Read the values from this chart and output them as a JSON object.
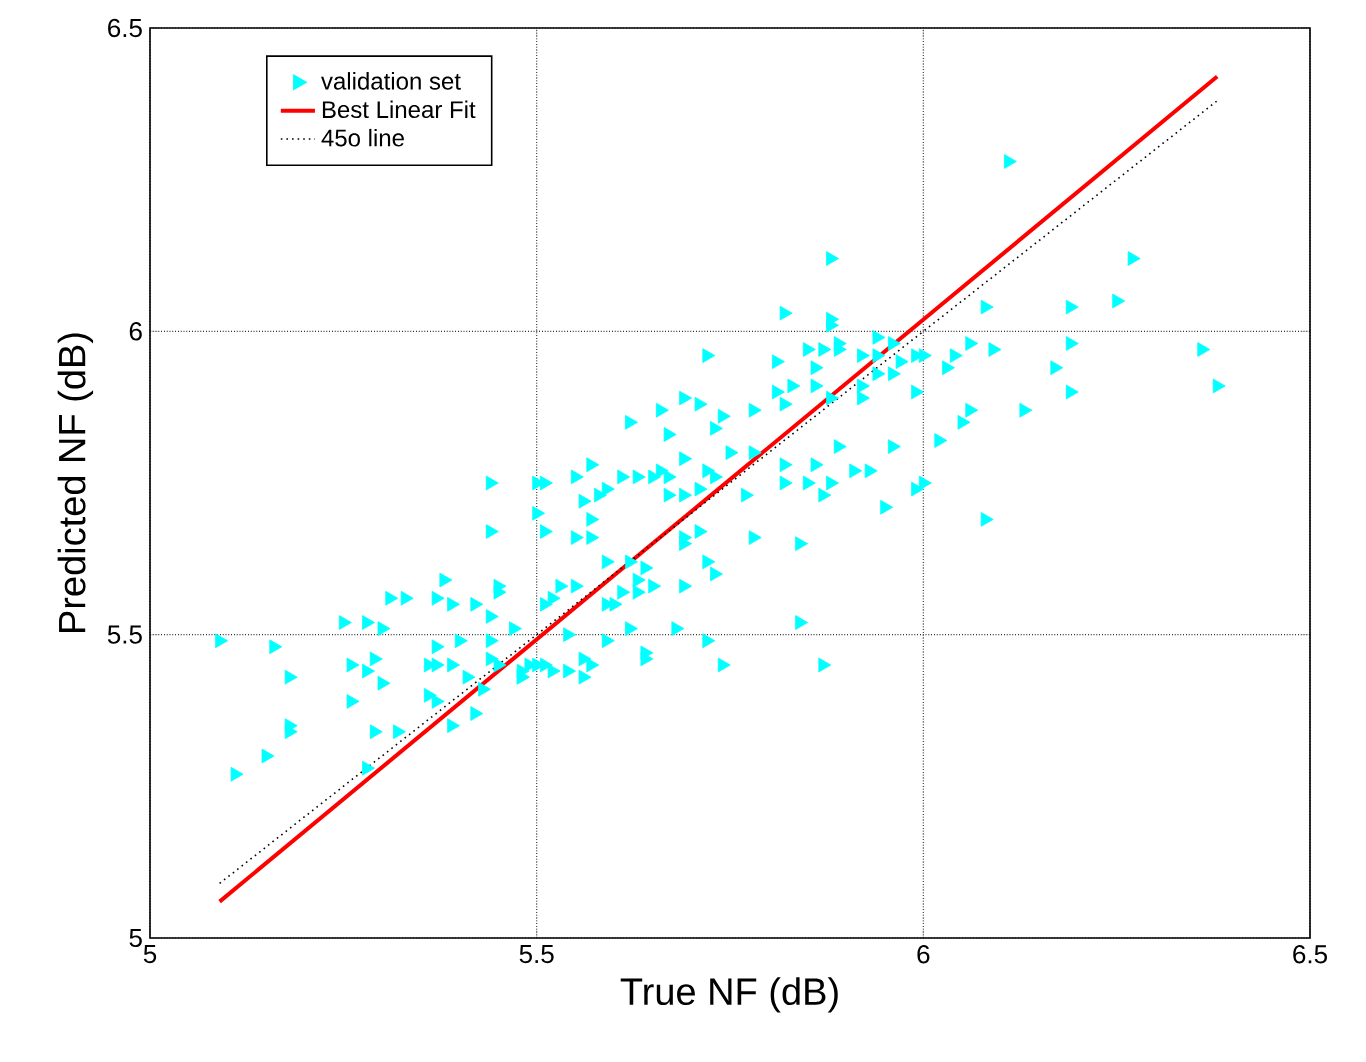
{
  "chart_data": {
    "type": "scatter",
    "xlabel": "True NF (dB)",
    "ylabel": "Predicted NF (dB)",
    "xlim": [
      5,
      6.5
    ],
    "ylim": [
      5,
      6.5
    ],
    "xticks": [
      5,
      5.5,
      6,
      6.5
    ],
    "yticks": [
      5,
      5.5,
      6,
      6.5
    ],
    "grid": true,
    "legend": "top left",
    "series": [
      {
        "name": "validation set",
        "type": "scatter",
        "color": "#00ffff",
        "marker": "triangle",
        "x": [
          5.09,
          5.16,
          5.18,
          5.18,
          5.18,
          5.15,
          5.11,
          5.26,
          5.26,
          5.28,
          5.29,
          5.3,
          5.25,
          5.28,
          5.3,
          5.31,
          5.33,
          5.29,
          5.32,
          5.28,
          5.38,
          5.37,
          5.39,
          5.42,
          5.44,
          5.45,
          5.45,
          5.44,
          5.44,
          5.5,
          5.5,
          5.51,
          5.51,
          5.37,
          5.4,
          5.44,
          5.47,
          5.36,
          5.37,
          5.39,
          5.44,
          5.45,
          5.48,
          5.48,
          5.5,
          5.41,
          5.43,
          5.36,
          5.37,
          5.39,
          5.42,
          5.75,
          5.78,
          5.89,
          5.96,
          5.57,
          5.55,
          5.51,
          5.61,
          5.63,
          5.65,
          5.66,
          5.67,
          5.69,
          5.72,
          5.73,
          5.59,
          5.58,
          5.67,
          5.69,
          5.71,
          5.56,
          5.77,
          5.82,
          5.86,
          5.91,
          5.93,
          5.82,
          5.85,
          5.88,
          5.87,
          5.99,
          5.95,
          5.57,
          5.55,
          5.57,
          5.69,
          5.69,
          5.71,
          5.78,
          5.84,
          5.59,
          5.62,
          5.64,
          5.72,
          5.73,
          5.63,
          5.65,
          5.69,
          5.53,
          5.55,
          5.61,
          5.63,
          5.59,
          5.6,
          5.52,
          5.54,
          5.59,
          5.62,
          5.68,
          5.72,
          5.74,
          5.64,
          5.64,
          5.84,
          5.87,
          5.51,
          5.52,
          5.49,
          5.54,
          5.56,
          5.57,
          5.56,
          5.48,
          5.88,
          5.82,
          5.88,
          5.88,
          5.72,
          5.85,
          5.87,
          5.89,
          5.89,
          5.94,
          5.96,
          5.92,
          5.94,
          5.97,
          5.99,
          5.81,
          5.86,
          5.81,
          5.83,
          5.86,
          5.82,
          5.88,
          5.92,
          5.94,
          5.96,
          5.99,
          5.92,
          5.62,
          5.66,
          5.69,
          5.71,
          5.67,
          5.73,
          5.74,
          5.78,
          6.11,
          6.27,
          6.25,
          6.19,
          6.08,
          6.06,
          6.09,
          6.19,
          6.36,
          6.38,
          6.17,
          6.19,
          6.13,
          6.06,
          6.05,
          6.02,
          6.0,
          6.04,
          6.03,
          6.0,
          6.08
        ],
        "values": [
          5.49,
          5.48,
          5.43,
          5.35,
          5.34,
          5.3,
          5.27,
          5.39,
          5.45,
          5.44,
          5.46,
          5.42,
          5.52,
          5.52,
          5.51,
          5.56,
          5.56,
          5.34,
          5.34,
          5.28,
          5.59,
          5.56,
          5.55,
          5.55,
          5.53,
          5.58,
          5.57,
          5.75,
          5.67,
          5.75,
          5.7,
          5.67,
          5.55,
          5.48,
          5.49,
          5.49,
          5.51,
          5.45,
          5.45,
          5.45,
          5.46,
          5.45,
          5.44,
          5.43,
          5.45,
          5.43,
          5.41,
          5.4,
          5.39,
          5.35,
          5.37,
          5.8,
          5.8,
          5.81,
          5.81,
          5.78,
          5.76,
          5.75,
          5.76,
          5.76,
          5.76,
          5.77,
          5.76,
          5.79,
          5.77,
          5.76,
          5.74,
          5.73,
          5.73,
          5.73,
          5.74,
          5.72,
          5.73,
          5.78,
          5.78,
          5.77,
          5.77,
          5.75,
          5.75,
          5.75,
          5.73,
          5.74,
          5.71,
          5.69,
          5.66,
          5.66,
          5.66,
          5.65,
          5.67,
          5.66,
          5.65,
          5.62,
          5.62,
          5.61,
          5.62,
          5.6,
          5.59,
          5.58,
          5.58,
          5.58,
          5.58,
          5.57,
          5.57,
          5.55,
          5.55,
          5.56,
          5.5,
          5.49,
          5.51,
          5.51,
          5.49,
          5.45,
          5.47,
          5.46,
          5.52,
          5.45,
          5.45,
          5.44,
          5.45,
          5.44,
          5.46,
          5.45,
          5.43,
          5.43,
          6.12,
          6.03,
          6.02,
          6.01,
          5.96,
          5.97,
          5.97,
          5.97,
          5.98,
          5.99,
          5.98,
          5.96,
          5.96,
          5.95,
          5.96,
          5.95,
          5.94,
          5.9,
          5.91,
          5.91,
          5.88,
          5.89,
          5.91,
          5.93,
          5.93,
          5.9,
          5.89,
          5.85,
          5.87,
          5.89,
          5.88,
          5.83,
          5.84,
          5.86,
          5.87,
          6.28,
          6.12,
          6.05,
          6.04,
          6.04,
          5.98,
          5.97,
          5.98,
          5.97,
          5.91,
          5.94,
          5.9,
          5.87,
          5.87,
          5.85,
          5.82,
          5.96,
          5.96,
          5.94,
          5.75,
          5.69
        ]
      },
      {
        "name": "Best Linear Fit",
        "type": "line",
        "color": "#ff0000",
        "marker": "none",
        "line_style": "solid",
        "x": [
          5.09,
          6.38
        ],
        "values": [
          5.06,
          6.42
        ]
      },
      {
        "name": "45o line",
        "type": "line",
        "color": "#000000",
        "marker": "none",
        "line_style": "dotted",
        "x": [
          5.09,
          6.38
        ],
        "values": [
          5.09,
          6.38
        ]
      }
    ]
  }
}
